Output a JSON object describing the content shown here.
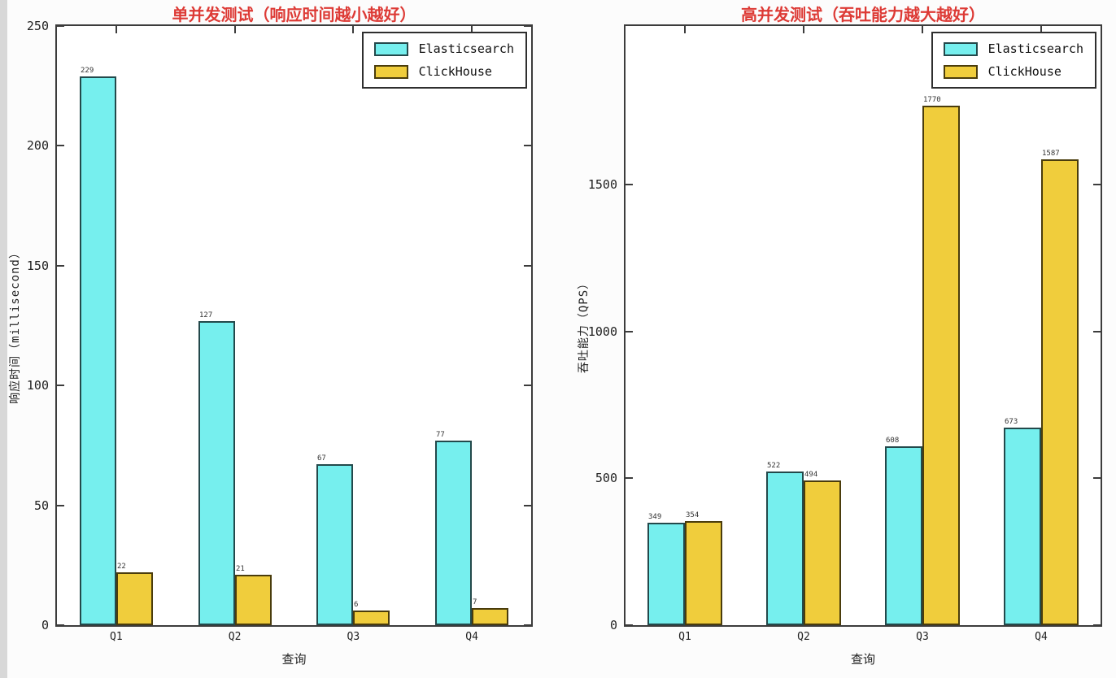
{
  "colors": {
    "elasticsearch": "#76efee",
    "elasticsearch_border": "#23494b",
    "clickhouse": "#f0cd3c",
    "clickhouse_border": "#4a3c0c",
    "title": "#dd3a35",
    "axis": "#3c3c3c"
  },
  "legend": {
    "items": [
      {
        "label": "Elasticsearch",
        "series": "elasticsearch"
      },
      {
        "label": "ClickHouse",
        "series": "clickhouse"
      }
    ]
  },
  "chart_data": [
    {
      "type": "bar",
      "title": "单并发测试（响应时间越小越好）",
      "xlabel": "查询",
      "ylabel": "响应时间（millisecond）",
      "categories": [
        "Q1",
        "Q2",
        "Q3",
        "Q4"
      ],
      "series": [
        {
          "name": "Elasticsearch",
          "values": [
            229,
            127,
            67,
            77
          ]
        },
        {
          "name": "ClickHouse",
          "values": [
            22,
            21,
            6,
            7
          ]
        }
      ],
      "ylim": [
        0,
        250
      ],
      "yticks": [
        0,
        50,
        100,
        150,
        200,
        250
      ],
      "legend_position": "upper right",
      "grid": false
    },
    {
      "type": "bar",
      "title": "高并发测试（吞吐能力越大越好）",
      "xlabel": "查询",
      "ylabel": "吞吐能力（QPS）",
      "categories": [
        "Q1",
        "Q2",
        "Q3",
        "Q4"
      ],
      "series": [
        {
          "name": "Elasticsearch",
          "values": [
            349,
            522,
            608,
            673
          ]
        },
        {
          "name": "ClickHouse",
          "values": [
            354,
            494,
            1770,
            1587
          ]
        }
      ],
      "ylim": [
        0,
        2040
      ],
      "yticks": [
        0,
        500,
        1000,
        1500
      ],
      "legend_position": "upper right",
      "grid": false
    }
  ]
}
